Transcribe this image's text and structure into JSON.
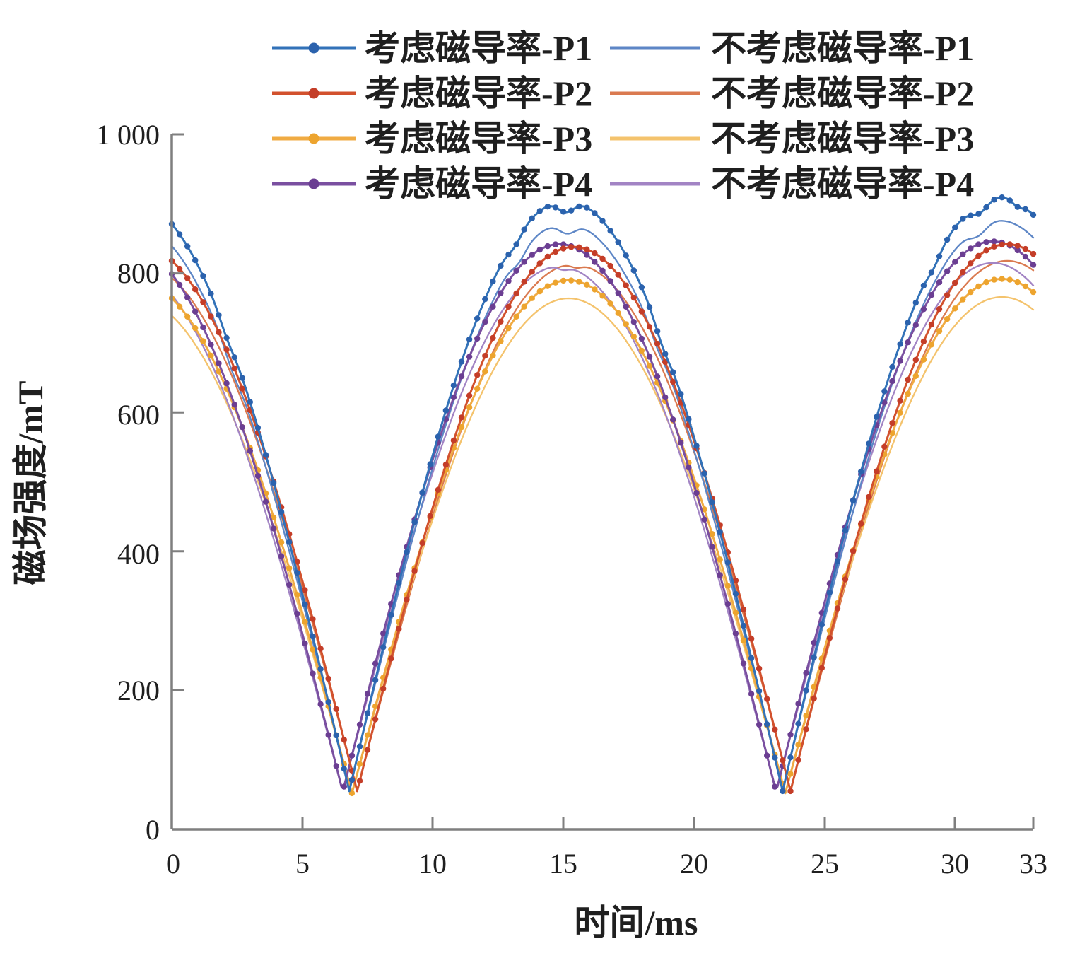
{
  "page": {
    "background": "#ffffff",
    "text_color": "#1f1f1f",
    "axis_color": "#7f7f7f"
  },
  "chart_data": {
    "type": "line",
    "title": "",
    "xlabel": "时间/ms",
    "ylabel": "磁场强度/mT",
    "xlim": [
      0,
      33
    ],
    "ylim": [
      0,
      1000
    ],
    "grid": false,
    "legend_position": "top",
    "xticks": [
      0,
      5,
      10,
      15,
      20,
      25,
      30,
      33
    ],
    "xtick_labels": [
      "0",
      "5",
      "10",
      "15",
      "20",
      "25",
      "30",
      "33"
    ],
    "yticks": [
      0,
      200,
      400,
      600,
      800,
      1000
    ],
    "ytick_labels": [
      "0",
      "200",
      "400",
      "600",
      "800",
      "1 000"
    ],
    "wave_model": {
      "description": "rectified-sine humps: y(t) = valley + (peak - valley) * |sin(pi*(t - valley1_x - phase)/period)| minus gaussian notches",
      "valleys_x": [
        6.8,
        23.4
      ],
      "peaks_x": [
        15.1,
        31.7
      ],
      "period_ms": 16.6
    },
    "series": [
      {
        "id": "p1-considered",
        "name": "考虑磁导率-P1",
        "color": "#3272b8",
        "markers": true,
        "marker_color": "#2b62ad",
        "phase_ms": 0,
        "valley_mT": 55,
        "peak1_mT": 905,
        "peak2_mT": 910,
        "keypoints": [
          [
            0,
            875
          ],
          [
            6.8,
            55
          ],
          [
            15.1,
            905
          ],
          [
            23.4,
            55
          ],
          [
            31.7,
            910
          ],
          [
            33,
            878
          ]
        ],
        "notches": [
          {
            "x_ms": 2.1,
            "depth_mT": 8,
            "width_ms": 0.4
          },
          {
            "x_ms": 13.15,
            "depth_mT": 9,
            "width_ms": 0.35
          },
          {
            "x_ms": 15.1,
            "depth_mT": 17,
            "width_ms": 0.45
          },
          {
            "x_ms": 18.8,
            "depth_mT": 11,
            "width_ms": 0.4
          },
          {
            "x_ms": 29.2,
            "depth_mT": 8,
            "width_ms": 0.35
          },
          {
            "x_ms": 30.95,
            "depth_mT": 15,
            "width_ms": 0.45
          },
          {
            "x_ms": 32.4,
            "depth_mT": 7,
            "width_ms": 0.3
          }
        ]
      },
      {
        "id": "p1-not-considered",
        "name": "不考虑磁导率-P1",
        "color": "#5d86c6",
        "markers": false,
        "marker_color": "#5d86c6",
        "phase_ms": 0,
        "valley_mT": 57,
        "peak1_mT": 872,
        "peak2_mT": 876,
        "keypoints": [
          [
            0,
            845
          ],
          [
            6.8,
            57
          ],
          [
            15.15,
            872
          ],
          [
            23.4,
            57
          ],
          [
            31.7,
            876
          ],
          [
            33,
            846
          ]
        ],
        "notches": [
          {
            "x_ms": 2.3,
            "depth_mT": 10,
            "width_ms": 0.4
          },
          {
            "x_ms": 13.3,
            "depth_mT": 10,
            "width_ms": 0.35
          },
          {
            "x_ms": 15.15,
            "depth_mT": 15,
            "width_ms": 0.45
          },
          {
            "x_ms": 18.6,
            "depth_mT": 8,
            "width_ms": 0.35
          },
          {
            "x_ms": 30.9,
            "depth_mT": 13,
            "width_ms": 0.45
          }
        ]
      },
      {
        "id": "p2-considered",
        "name": "考虑磁导率-P2",
        "color": "#d2512d",
        "markers": true,
        "marker_color": "#c43d28",
        "phase_ms": 0.3,
        "valley_mT": 55,
        "peak1_mT": 838,
        "peak2_mT": 842,
        "keypoints": [
          [
            0,
            818
          ],
          [
            7.1,
            55
          ],
          [
            15.4,
            838
          ],
          [
            23.7,
            55
          ],
          [
            32,
            842
          ],
          [
            33,
            826
          ]
        ],
        "notches": []
      },
      {
        "id": "p2-not-considered",
        "name": "不考虑磁导率-P2",
        "color": "#da7a50",
        "markers": false,
        "marker_color": "#da7a50",
        "phase_ms": 0.3,
        "valley_mT": 56,
        "peak1_mT": 813,
        "peak2_mT": 818,
        "keypoints": [
          [
            0,
            794
          ],
          [
            7.1,
            56
          ],
          [
            15.4,
            813
          ],
          [
            23.7,
            56
          ],
          [
            32,
            818
          ],
          [
            33,
            804
          ]
        ],
        "notches": [
          {
            "x_ms": 15.5,
            "depth_mT": 5,
            "width_ms": 0.3
          }
        ]
      },
      {
        "id": "p3-considered",
        "name": "考虑磁导率-P3",
        "color": "#f0ab43",
        "markers": true,
        "marker_color": "#eda42e",
        "phase_ms": 0.1,
        "valley_mT": 52,
        "peak1_mT": 790,
        "peak2_mT": 792,
        "keypoints": [
          [
            0,
            764
          ],
          [
            6.9,
            52
          ],
          [
            15.2,
            790
          ],
          [
            23.5,
            52
          ],
          [
            31.8,
            792
          ],
          [
            33,
            770
          ]
        ],
        "notches": []
      },
      {
        "id": "p3-not-considered",
        "name": "不考虑磁导率-P3",
        "color": "#f4c36d",
        "markers": false,
        "marker_color": "#f4c36d",
        "phase_ms": 0.1,
        "valley_mT": 53,
        "peak1_mT": 764,
        "peak2_mT": 766,
        "keypoints": [
          [
            0,
            739
          ],
          [
            6.9,
            53
          ],
          [
            15.2,
            764
          ],
          [
            23.5,
            53
          ],
          [
            31.8,
            766
          ],
          [
            33,
            744
          ]
        ],
        "notches": []
      },
      {
        "id": "p4-considered",
        "name": "考虑磁导率-P4",
        "color": "#7a4fa0",
        "markers": true,
        "marker_color": "#6b3e92",
        "phase_ms": -0.25,
        "valley_mT": 54,
        "peak1_mT": 842,
        "peak2_mT": 846,
        "keypoints": [
          [
            0,
            797
          ],
          [
            6.55,
            54
          ],
          [
            14.85,
            842
          ],
          [
            23.15,
            54
          ],
          [
            31.45,
            846
          ],
          [
            33,
            812
          ]
        ],
        "notches": []
      },
      {
        "id": "p4-not-considered",
        "name": "不考虑磁导率-P4",
        "color": "#a284c4",
        "markers": false,
        "marker_color": "#a284c4",
        "phase_ms": -0.25,
        "valley_mT": 55,
        "peak1_mT": 810,
        "peak2_mT": 815,
        "keypoints": [
          [
            0,
            769
          ],
          [
            6.55,
            55
          ],
          [
            14.85,
            810
          ],
          [
            23.15,
            55
          ],
          [
            31.45,
            815
          ],
          [
            33,
            784
          ]
        ],
        "notches": [
          {
            "x_ms": 15.0,
            "depth_mT": 5,
            "width_ms": 0.3
          }
        ]
      }
    ]
  }
}
